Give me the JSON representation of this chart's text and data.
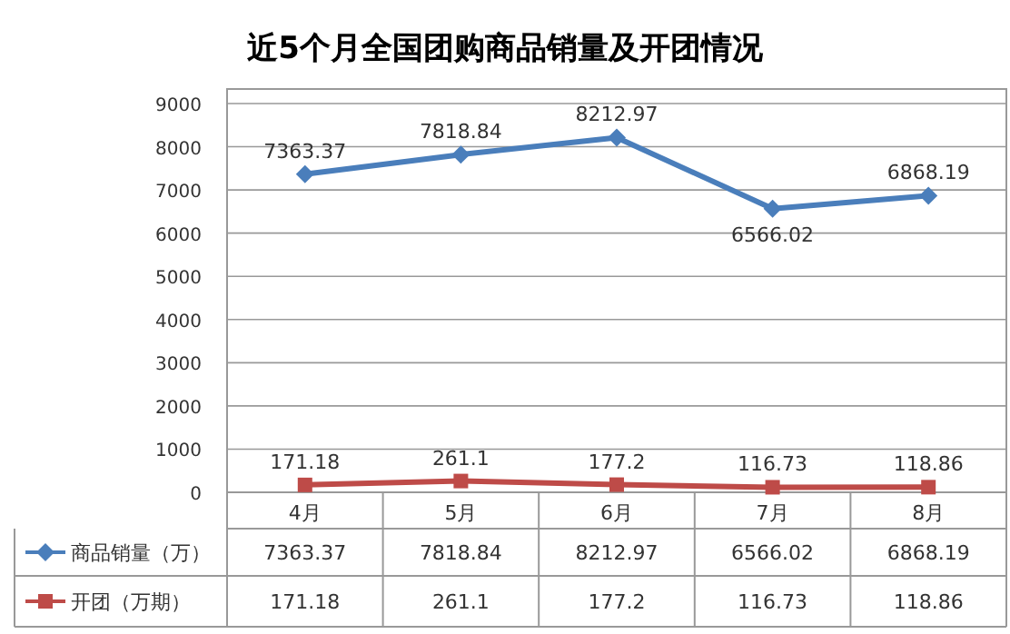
{
  "chart_data": {
    "type": "line",
    "title": "近5个月全国团购商品销量及开团情况",
    "categories": [
      "4月",
      "5月",
      "6月",
      "7月",
      "8月"
    ],
    "series": [
      {
        "name": "商品销量（万）",
        "color": "#4a7ebb",
        "marker": "diamond",
        "values": [
          7363.37,
          7818.84,
          8212.97,
          6566.02,
          6868.19
        ]
      },
      {
        "name": "开团（万期）",
        "color": "#be4b48",
        "marker": "square",
        "values": [
          171.18,
          261.1,
          177.2,
          116.73,
          118.86
        ]
      }
    ],
    "annotations": [
      {
        "text": "7363.37",
        "x": "4月",
        "y": 7363.37
      },
      {
        "text": "7818.84",
        "x": "5月",
        "y": 7818.84
      },
      {
        "text": "8212.97",
        "x": "6月",
        "y": 8212.97
      },
      {
        "text": "6566.02",
        "x": "7月",
        "y": 6566.02
      },
      {
        "text": "6868.19",
        "x": "8月",
        "y": 6868.19
      },
      {
        "text": "171.18",
        "x": "4月",
        "y": 171.18
      },
      {
        "text": "261.1",
        "x": "5月",
        "y": 261.1
      },
      {
        "text": "177.2",
        "x": "6月",
        "y": 177.2
      },
      {
        "text": "116.73",
        "x": "7月",
        "y": 116.73
      },
      {
        "text": "118.86",
        "x": "8月",
        "y": 118.86
      }
    ],
    "ylim": [
      0,
      9000
    ],
    "yticks": [
      0,
      1000,
      2000,
      3000,
      4000,
      5000,
      6000,
      7000,
      8000,
      9000
    ],
    "grid": "y",
    "data_labels": true,
    "legend": "bottom"
  }
}
